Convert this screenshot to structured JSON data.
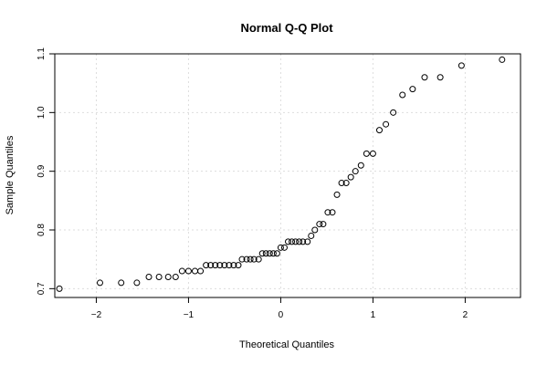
{
  "chart_data": {
    "type": "scatter",
    "title": "Normal Q-Q Plot",
    "xlabel": "Theoretical Quantiles",
    "ylabel": "Sample Quantiles",
    "xlim": [
      -2.45,
      2.6
    ],
    "ylim": [
      0.685,
      1.1
    ],
    "x_ticks": [
      -2,
      -1,
      0,
      1,
      2
    ],
    "x_tick_labels": [
      "−2",
      "−1",
      "0",
      "1",
      "2"
    ],
    "y_ticks": [
      0.7,
      0.8,
      0.9,
      1.0,
      1.1
    ],
    "y_tick_labels": [
      "0.7",
      "0.8",
      "0.9",
      "1.0",
      "1.1"
    ],
    "grid": true,
    "points": [
      [
        -2.4,
        0.7
      ],
      [
        -1.96,
        0.71
      ],
      [
        -1.73,
        0.71
      ],
      [
        -1.56,
        0.71
      ],
      [
        -1.43,
        0.72
      ],
      [
        -1.32,
        0.72
      ],
      [
        -1.22,
        0.72
      ],
      [
        -1.14,
        0.72
      ],
      [
        -1.07,
        0.73
      ],
      [
        -1.0,
        0.73
      ],
      [
        -0.93,
        0.73
      ],
      [
        -0.87,
        0.73
      ],
      [
        -0.81,
        0.74
      ],
      [
        -0.76,
        0.74
      ],
      [
        -0.71,
        0.74
      ],
      [
        -0.66,
        0.74
      ],
      [
        -0.61,
        0.74
      ],
      [
        -0.56,
        0.74
      ],
      [
        -0.51,
        0.74
      ],
      [
        -0.46,
        0.74
      ],
      [
        -0.42,
        0.75
      ],
      [
        -0.37,
        0.75
      ],
      [
        -0.33,
        0.75
      ],
      [
        -0.29,
        0.75
      ],
      [
        -0.24,
        0.75
      ],
      [
        -0.2,
        0.76
      ],
      [
        -0.16,
        0.76
      ],
      [
        -0.12,
        0.76
      ],
      [
        -0.08,
        0.76
      ],
      [
        -0.04,
        0.76
      ],
      [
        0.0,
        0.77
      ],
      [
        0.04,
        0.77
      ],
      [
        0.08,
        0.78
      ],
      [
        0.12,
        0.78
      ],
      [
        0.16,
        0.78
      ],
      [
        0.2,
        0.78
      ],
      [
        0.24,
        0.78
      ],
      [
        0.29,
        0.78
      ],
      [
        0.33,
        0.79
      ],
      [
        0.37,
        0.8
      ],
      [
        0.42,
        0.81
      ],
      [
        0.46,
        0.81
      ],
      [
        0.51,
        0.83
      ],
      [
        0.56,
        0.83
      ],
      [
        0.61,
        0.86
      ],
      [
        0.66,
        0.88
      ],
      [
        0.71,
        0.88
      ],
      [
        0.76,
        0.89
      ],
      [
        0.81,
        0.9
      ],
      [
        0.87,
        0.91
      ],
      [
        0.93,
        0.93
      ],
      [
        1.0,
        0.93
      ],
      [
        1.07,
        0.97
      ],
      [
        1.14,
        0.98
      ],
      [
        1.22,
        1.0
      ],
      [
        1.32,
        1.03
      ],
      [
        1.43,
        1.04
      ],
      [
        1.56,
        1.06
      ],
      [
        1.73,
        1.06
      ],
      [
        1.96,
        1.08
      ],
      [
        2.4,
        1.09
      ]
    ]
  }
}
